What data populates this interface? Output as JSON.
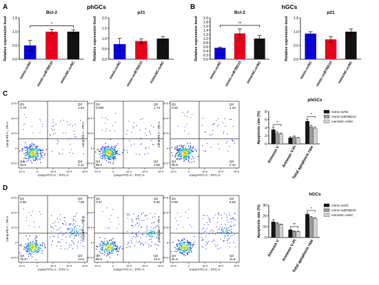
{
  "letters": {
    "a": "A",
    "b": "B",
    "c": "C",
    "d": "D"
  },
  "colors": {
    "blue": "#0a00d6",
    "red": "#e8001c",
    "black": "#111111",
    "dark": "#151515",
    "gray": "#9a9a9a",
    "lgray": "#d3d3d3",
    "density": [
      "#1a34d9",
      "#19a2e6",
      "#3ed17a",
      "#e8e420",
      "#f5a31a"
    ]
  },
  "panel_a": {
    "heading": "phGCs",
    "ylabel": "Relative expression level",
    "chart_data": [
      {
        "type": "bar",
        "title": "Bcl-2",
        "categories": [
          "mimic-ovNC",
          "mimic-ovBTBD10",
          "mimicNC-ovNC"
        ],
        "values": [
          0.5,
          1.0,
          1.0
        ],
        "errors": [
          0.18,
          0.09,
          0.07
        ],
        "ylim": [
          0,
          1.5
        ],
        "yticks": [
          "0.0",
          "0.5",
          "1.0",
          "1.5"
        ],
        "sig": {
          "label": "*",
          "from": 0,
          "to": 2
        }
      },
      {
        "type": "bar",
        "title": "p21",
        "categories": [
          "mimic-ovNC",
          "mimic-ovBTBD10",
          "mimicNC-ovNC"
        ],
        "values": [
          0.73,
          0.88,
          1.0
        ],
        "errors": [
          0.28,
          0.1,
          0.1
        ],
        "ylim": [
          0,
          2.0
        ],
        "yticks": [
          "0.0",
          "0.5",
          "1.0",
          "1.5",
          "2.0"
        ]
      }
    ]
  },
  "panel_b": {
    "heading": "hGCs",
    "ylabel": "Relative expression level",
    "chart_data": [
      {
        "type": "bar",
        "title": "Bcl-2",
        "categories": [
          "mimic-ovNC",
          "mimic-ovBTBD10",
          "mimicNC-ovNC"
        ],
        "values": [
          0.55,
          1.25,
          1.0
        ],
        "errors": [
          0.04,
          0.22,
          0.15
        ],
        "ylim": [
          0,
          2.0
        ],
        "yticks": [
          "0.0",
          "0.2",
          "0.4",
          "0.6",
          "0.8",
          "1.0",
          "1.2",
          "1.4",
          "1.6",
          "1.8",
          "2.0"
        ],
        "sig": {
          "label": "**",
          "from": 0,
          "to": 2
        }
      },
      {
        "type": "bar",
        "title": "p21",
        "categories": [
          "mimic-ovNC",
          "mimic-ovBTBD10",
          "mimicNC-ovNC"
        ],
        "values": [
          0.93,
          0.72,
          1.0
        ],
        "errors": [
          0.07,
          0.1,
          0.1
        ],
        "ylim": [
          0,
          1.5
        ],
        "yticks": [
          "0.0",
          "0.5",
          "1.0",
          "1.5"
        ]
      }
    ]
  },
  "flow": {
    "xlabel": "Comp-FITC-A :: FITC-A",
    "ylabel": "Comp-PE-A :: PE-A",
    "xticks": [
      "-10^3",
      "0",
      "10^3",
      "10^4",
      "10^5"
    ],
    "yticks": [
      "10^5",
      "10^4",
      "10^3",
      "0",
      "-10^3"
    ],
    "rows": [
      [
        {
          "q1": "0.79",
          "q2": "1.53",
          "q3": "4.11",
          "q4": "93.6"
        },
        {
          "q1": "0.095",
          "q2": "1.73",
          "q3": "2.58",
          "q4": "95.6"
        },
        {
          "q1": "0.26",
          "q2": "1.43",
          "q3": "2.42",
          "q4": "95.9"
        }
      ],
      [
        {
          "q1": "2.56",
          "q2": "7.35",
          "q3": "14.5",
          "q4": "75.6"
        },
        {
          "q1": "0.37",
          "q2": "5.62",
          "q3": "13.0",
          "q4": "80.9"
        },
        {
          "q1": "0.69",
          "q2": "5.62",
          "q3": "11.9",
          "q4": "81.8"
        }
      ]
    ]
  },
  "panel_c": {
    "heading": "phGCs",
    "chart_data": {
      "type": "bar",
      "ylabel": "Apoptosis rate (%)",
      "categories": [
        "Annexin V",
        "Annexin V-PI",
        "Total apoptosis rate"
      ],
      "series": [
        {
          "name": "mimic-ovNC",
          "values": [
            3.5,
            1.5,
            5.6
          ],
          "errors": [
            0.6,
            0.25,
            0.5
          ]
        },
        {
          "name": "mimic-ovBTBD10",
          "values": [
            2.6,
            1.7,
            4.2
          ],
          "errors": [
            0.35,
            0.25,
            0.4
          ]
        },
        {
          "name": "mimicNC-ovNC",
          "values": [
            2.4,
            1.4,
            3.8
          ],
          "errors": [
            0.3,
            0.2,
            0.35
          ]
        }
      ],
      "ylim": [
        0,
        8
      ],
      "yticks": [
        "0",
        "2",
        "4",
        "6",
        "8"
      ],
      "sig": [
        {
          "label": "*",
          "group": 0,
          "from": 0,
          "to": 2
        },
        {
          "label": "*",
          "group": 2,
          "from": 0,
          "to": 2
        }
      ]
    }
  },
  "panel_d": {
    "heading": "hGCs",
    "chart_data": {
      "type": "bar",
      "ylabel": "Apoptosis rate (%)",
      "categories": [
        "Annexin V",
        "Annexin V-PI",
        "Total apoptosis rate"
      ],
      "series": [
        {
          "name": "mimic-ovNC",
          "values": [
            14.5,
            7.0,
            21.5
          ],
          "errors": [
            1.8,
            0.6,
            1.0
          ]
        },
        {
          "name": "mimic-ovBTBD10",
          "values": [
            13.0,
            5.6,
            18.6
          ],
          "errors": [
            0.8,
            0.4,
            0.8
          ]
        },
        {
          "name": "mimicNC-ovNC",
          "values": [
            12.0,
            5.6,
            17.8
          ],
          "errors": [
            0.5,
            0.4,
            0.6
          ]
        }
      ],
      "ylim": [
        0,
        30
      ],
      "yticks": [
        "0",
        "10",
        "20",
        "30"
      ],
      "sig": [
        {
          "label": "**",
          "group": 1,
          "from": 0,
          "to": 2
        },
        {
          "label": "*",
          "group": 2,
          "from": 0,
          "to": 2
        }
      ]
    }
  }
}
